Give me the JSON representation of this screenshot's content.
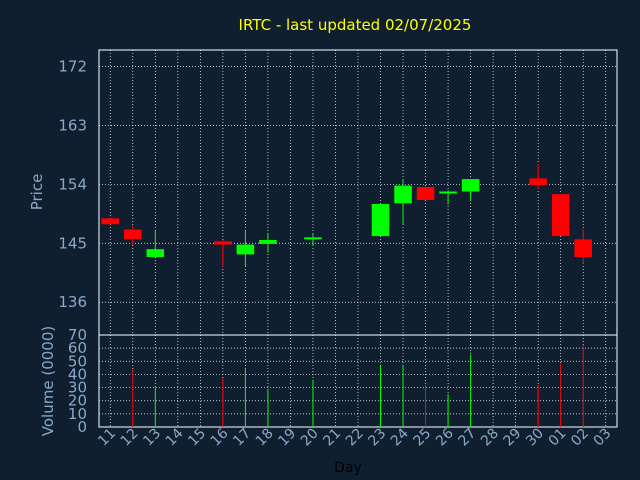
{
  "chart_data": {
    "type": "candlestick",
    "title": "IRTC - last updated 02/07/2025",
    "xlabel": "Day",
    "price_panel": {
      "ylabel": "Price",
      "yticks": [
        136,
        145,
        154,
        163,
        172
      ],
      "ylim": [
        131,
        174.5
      ],
      "grid": true
    },
    "volume_panel": {
      "ylabel": "Volume (0000)",
      "yticks": [
        0,
        10,
        20,
        30,
        40,
        50,
        60,
        70
      ],
      "ylim": [
        0,
        70
      ],
      "grid": true
    },
    "x_tick_labels": [
      "11",
      "12",
      "13",
      "14",
      "15",
      "16",
      "17",
      "18",
      "19",
      "20",
      "21",
      "22",
      "23",
      "24",
      "25",
      "26",
      "27",
      "28",
      "29",
      "30",
      "01",
      "02",
      "03"
    ],
    "candles": [
      {
        "day": "11",
        "open": 148.8,
        "close": 147.9,
        "high": 148.8,
        "low": 147.9,
        "volume": null,
        "direction": "down"
      },
      {
        "day": "12",
        "open": 147.1,
        "close": 145.6,
        "high": 147.6,
        "low": 144.8,
        "volume": 44,
        "direction": "down"
      },
      {
        "day": "13",
        "open": 142.9,
        "close": 144.1,
        "high": 146.9,
        "low": 142.9,
        "volume": 30,
        "direction": "up"
      },
      {
        "day": "16",
        "open": 145.3,
        "close": 144.8,
        "high": 145.5,
        "low": 141.4,
        "volume": 37,
        "direction": "down"
      },
      {
        "day": "17",
        "open": 143.3,
        "close": 144.8,
        "high": 146.9,
        "low": 141.4,
        "volume": 45,
        "direction": "up"
      },
      {
        "day": "18",
        "open": 144.9,
        "close": 145.5,
        "high": 146.5,
        "low": 143.6,
        "volume": 28,
        "direction": "up"
      },
      {
        "day": "20",
        "open": 145.6,
        "close": 145.9,
        "high": 146.4,
        "low": 144.6,
        "volume": 36,
        "direction": "up"
      },
      {
        "day": "23",
        "open": 146.1,
        "close": 151.0,
        "high": 151.0,
        "low": 146.1,
        "volume": 47,
        "direction": "up"
      },
      {
        "day": "24",
        "open": 151.1,
        "close": 153.8,
        "high": 154.8,
        "low": 147.9,
        "volume": 47,
        "direction": "up"
      },
      {
        "day": "25",
        "open": 153.6,
        "close": 151.6,
        "high": 153.6,
        "low": 151.6,
        "volume": 32,
        "direction": "down"
      },
      {
        "day": "26",
        "open": 152.6,
        "close": 152.9,
        "high": 153.1,
        "low": 150.9,
        "volume": 25,
        "direction": "up"
      },
      {
        "day": "27",
        "open": 152.9,
        "close": 154.8,
        "high": 154.8,
        "low": 151.6,
        "volume": 55,
        "direction": "up"
      },
      {
        "day": "30",
        "open": 154.9,
        "close": 153.9,
        "high": 157.1,
        "low": 153.3,
        "volume": 32,
        "direction": "down"
      },
      {
        "day": "01",
        "open": 152.5,
        "close": 146.1,
        "high": 152.5,
        "low": 146.1,
        "volume": 48,
        "direction": "down"
      },
      {
        "day": "02",
        "open": 145.6,
        "close": 142.9,
        "high": 147.1,
        "low": 141.9,
        "volume": 62,
        "direction": "down"
      }
    ],
    "colors": {
      "background": "#0f1f30",
      "up": "#00ff00",
      "down": "#ff0000",
      "grid": "#ffffff",
      "frame": "#ffffff",
      "text": "#8aa8c8",
      "title": "#ffff00"
    }
  }
}
